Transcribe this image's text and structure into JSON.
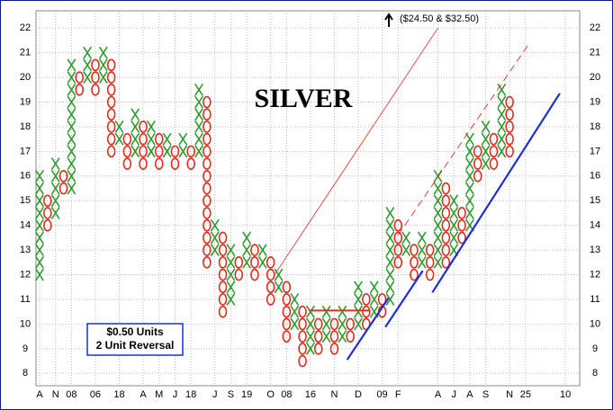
{
  "chart_data": {
    "type": "point-and-figure",
    "title": "SILVER",
    "annotation": "($24.50 & $32.50)",
    "legend_lines": [
      "$0.50 Units",
      "2 Unit Reversal"
    ],
    "box_size": 0.5,
    "ylim": [
      7.5,
      22.7
    ],
    "yticks": [
      8,
      9,
      10,
      11,
      12,
      13,
      14,
      15,
      16,
      17,
      18,
      19,
      20,
      21,
      22
    ],
    "grid": true,
    "x_color": "#2e9b2e",
    "o_color": "#e8281e",
    "categories": [
      "A",
      null,
      "N",
      null,
      "08",
      null,
      null,
      "06",
      null,
      null,
      "18",
      null,
      null,
      "A",
      null,
      "M",
      null,
      "J",
      null,
      "18",
      null,
      null,
      "J",
      null,
      "S",
      null,
      "19",
      null,
      null,
      "O",
      null,
      "08",
      null,
      null,
      "16",
      null,
      null,
      "N",
      null,
      null,
      "D",
      null,
      null,
      "09",
      null,
      "F",
      null,
      null,
      null,
      null,
      "A",
      null,
      "J",
      null,
      "A",
      null,
      "S",
      null,
      null,
      "N",
      null,
      "25",
      null,
      null,
      null,
      null,
      "10"
    ],
    "columns": [
      {
        "type": "X",
        "low": 12,
        "high": 16
      },
      {
        "type": "O",
        "low": 14,
        "high": 15
      },
      {
        "type": "X",
        "low": 14.5,
        "high": 16.5
      },
      {
        "type": "O",
        "low": 15.5,
        "high": 16
      },
      {
        "type": "X",
        "low": 15.5,
        "high": 20.5
      },
      {
        "type": "O",
        "low": 19.5,
        "high": 20
      },
      {
        "type": "X",
        "low": 20,
        "high": 21
      },
      {
        "type": "O",
        "low": 19.5,
        "high": 20.5
      },
      {
        "type": "X",
        "low": 20,
        "high": 21
      },
      {
        "type": "O",
        "low": 17,
        "high": 20.5
      },
      {
        "type": "X",
        "low": 17.5,
        "high": 18
      },
      {
        "type": "O",
        "low": 16.5,
        "high": 17.5
      },
      {
        "type": "X",
        "low": 17,
        "high": 18.5
      },
      {
        "type": "O",
        "low": 16.5,
        "high": 18
      },
      {
        "type": "X",
        "low": 17,
        "high": 18
      },
      {
        "type": "O",
        "low": 16.5,
        "high": 17.5
      },
      {
        "type": "X",
        "low": 17,
        "high": 17.5
      },
      {
        "type": "O",
        "low": 16.5,
        "high": 17
      },
      {
        "type": "X",
        "low": 17,
        "high": 17.5
      },
      {
        "type": "O",
        "low": 16.5,
        "high": 17
      },
      {
        "type": "X",
        "low": 17,
        "high": 19.5
      },
      {
        "type": "O",
        "low": 12.5,
        "high": 19
      },
      {
        "type": "X",
        "low": 13,
        "high": 14
      },
      {
        "type": "O",
        "low": 10.5,
        "high": 13.5
      },
      {
        "type": "X",
        "low": 11,
        "high": 13
      },
      {
        "type": "O",
        "low": 12,
        "high": 12.5
      },
      {
        "type": "X",
        "low": 12.5,
        "high": 13.5
      },
      {
        "type": "O",
        "low": 12,
        "high": 13
      },
      {
        "type": "X",
        "low": 12.5,
        "high": 13
      },
      {
        "type": "O",
        "low": 11,
        "high": 12.5
      },
      {
        "type": "X",
        "low": 11.5,
        "high": 12
      },
      {
        "type": "O",
        "low": 9.5,
        "high": 11.5
      },
      {
        "type": "X",
        "low": 10,
        "high": 11
      },
      {
        "type": "O",
        "low": 8.5,
        "high": 10.5
      },
      {
        "type": "X",
        "low": 9,
        "high": 10.5
      },
      {
        "type": "O",
        "low": 9,
        "high": 10
      },
      {
        "type": "X",
        "low": 9.5,
        "high": 10.5
      },
      {
        "type": "O",
        "low": 9,
        "high": 10
      },
      {
        "type": "X",
        "low": 9.5,
        "high": 10.5
      },
      {
        "type": "O",
        "low": 9.5,
        "high": 10
      },
      {
        "type": "X",
        "low": 10,
        "high": 11.5
      },
      {
        "type": "O",
        "low": 10,
        "high": 11
      },
      {
        "type": "X",
        "low": 10.5,
        "high": 11.5
      },
      {
        "type": "O",
        "low": 10.5,
        "high": 11
      },
      {
        "type": "X",
        "low": 11,
        "high": 14.5
      },
      {
        "type": "O",
        "low": 12.5,
        "high": 14
      },
      {
        "type": "X",
        "low": 13,
        "high": 13.5
      },
      {
        "type": "O",
        "low": 12,
        "high": 13
      },
      {
        "type": "X",
        "low": 12.5,
        "high": 13.5
      },
      {
        "type": "O",
        "low": 12,
        "high": 13
      },
      {
        "type": "X",
        "low": 12.5,
        "high": 16
      },
      {
        "type": "O",
        "low": 12.5,
        "high": 15.5
      },
      {
        "type": "X",
        "low": 13,
        "high": 15
      },
      {
        "type": "O",
        "low": 13.5,
        "high": 14.5
      },
      {
        "type": "X",
        "low": 14,
        "high": 17.5
      },
      {
        "type": "O",
        "low": 16,
        "high": 17
      },
      {
        "type": "X",
        "low": 16.5,
        "high": 18
      },
      {
        "type": "O",
        "low": 16.5,
        "high": 17.5
      },
      {
        "type": "X",
        "low": 17,
        "high": 19.5
      },
      {
        "type": "O",
        "low": 17,
        "high": 19
      },
      null,
      null,
      null,
      null,
      null,
      null,
      null
    ],
    "trendlines": [
      {
        "color": "#e8281e",
        "dashed": false,
        "width": 0.8,
        "from": [
          29.5,
          12
        ],
        "to": [
          50,
          22
        ]
      },
      {
        "color": "#e8281e",
        "dashed": true,
        "width": 0.9,
        "from": [
          45,
          13.6
        ],
        "to": [
          61.5,
          21.4
        ]
      },
      {
        "color": "#e8281e",
        "dashed": false,
        "width": 2,
        "from": [
          33.8,
          10.55
        ],
        "to": [
          41.4,
          10.55
        ]
      },
      {
        "color": "#1f2fd6",
        "dashed": false,
        "width": 2.2,
        "from": [
          38.6,
          8.55
        ],
        "to": [
          43.8,
          11.06
        ]
      },
      {
        "color": "#1f2fd6",
        "dashed": false,
        "width": 2.2,
        "from": [
          43.4,
          9.88
        ],
        "to": [
          48.1,
          12.16
        ]
      },
      {
        "color": "#1f2fd6",
        "dashed": false,
        "width": 2.2,
        "from": [
          49.3,
          11.28
        ],
        "to": [
          65.3,
          19.35
        ]
      }
    ]
  }
}
